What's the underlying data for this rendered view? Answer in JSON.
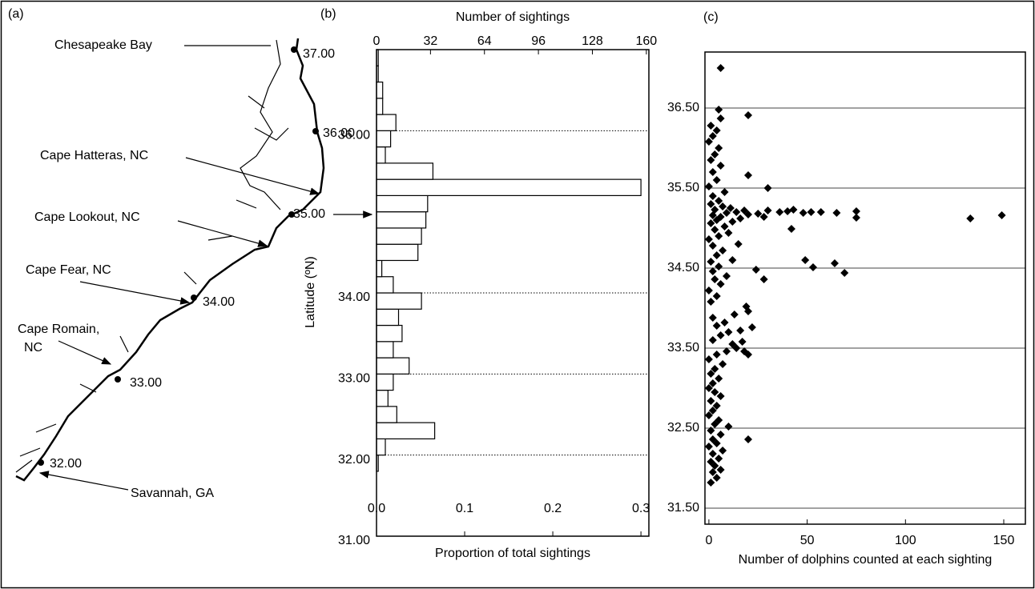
{
  "map": {
    "panel_label": "(a)",
    "places": [
      "Chesapeake Bay",
      "Cape Hatteras, NC",
      "Cape Lookout, NC",
      "Cape Fear, NC",
      [
        "Cape Romain,",
        "NC"
      ],
      "Savannah, GA"
    ],
    "latitudes": [
      "37.00",
      "36.00",
      "35.00",
      "34.00",
      "33.00",
      "32.00"
    ]
  },
  "chart_data": [
    {
      "type": "histogram",
      "panel_label": "(b)",
      "orientation": "horizontal",
      "bins": [
        31.8,
        32,
        32.2,
        32.4,
        32.6,
        32.8,
        33,
        33.2,
        33.4,
        33.6,
        33.8,
        34,
        34.2,
        34.4,
        34.6,
        34.8,
        35,
        35.2,
        35.4,
        35.6,
        35.8,
        36,
        36.2,
        36.4,
        36.6,
        36.8,
        37
      ],
      "values": [
        0.002,
        0.01,
        0.066,
        0.023,
        0.013,
        0.019,
        0.037,
        0.019,
        0.029,
        0.025,
        0.051,
        0.019,
        0.006,
        0.047,
        0.051,
        0.056,
        0.058,
        0.3,
        0.064,
        0.01,
        0.016,
        0.022,
        0.007,
        0.007,
        0.002,
        0.002
      ],
      "color": "#ffffff",
      "xlim": [
        0,
        0.309
      ],
      "xticks": [
        {
          "value": 0,
          "label": "0.0"
        },
        {
          "value": 0.1,
          "label": "0.1"
        },
        {
          "value": 0.2,
          "label": "0.2"
        },
        {
          "value": 0.3,
          "label": "0.3"
        }
      ],
      "x_label": "Proportion of total sightings",
      "x2lim": [
        0,
        161.5
      ],
      "x2ticks": [
        0,
        32,
        64,
        96,
        128,
        160
      ],
      "x2_label": "Number of sightings",
      "ylim": [
        31,
        37
      ],
      "yticks": [
        {
          "value": 31,
          "label": "31.00"
        },
        {
          "value": 32,
          "label": "32.00"
        },
        {
          "value": 33,
          "label": "33.00"
        },
        {
          "value": 34,
          "label": "34.00"
        },
        {
          "value": 36,
          "label": "36.00"
        }
      ],
      "y_label": "Latitude (ºN)",
      "grid": true
    },
    {
      "type": "scatter",
      "panel_label": "(c)",
      "x": [
        1,
        4,
        2,
        6,
        3,
        1,
        5,
        2,
        7,
        0,
        4,
        2,
        6,
        1,
        3,
        5,
        0,
        2,
        4,
        1,
        6,
        3,
        0,
        2,
        5,
        1,
        3,
        7,
        0,
        4,
        9,
        14,
        18,
        12,
        2,
        6,
        10,
        16,
        4,
        8,
        2,
        13,
        19,
        1,
        4,
        0,
        6,
        3,
        9,
        2,
        5,
        1,
        12,
        4,
        7,
        2,
        15,
        0,
        5,
        10,
        3,
        8,
        1,
        12,
        4,
        16,
        6,
        2,
        20,
        9,
        14,
        18,
        3,
        11,
        7,
        1,
        5,
        2,
        8,
        0,
        4,
        2,
        6,
        1,
        3,
        5,
        0,
        2,
        4,
        1,
        6,
        5,
        25,
        28,
        30,
        36,
        40,
        43,
        48,
        52,
        57,
        65,
        75,
        75,
        133,
        149,
        42,
        30,
        20,
        20,
        6,
        49,
        53,
        64,
        69,
        28,
        24,
        20,
        10,
        20,
        17,
        22,
        20
      ],
      "y": [
        31.82,
        31.88,
        31.95,
        31.98,
        32.03,
        32.08,
        32.12,
        32.18,
        32.22,
        32.27,
        32.31,
        32.36,
        32.42,
        32.47,
        32.55,
        32.6,
        32.66,
        32.72,
        32.78,
        32.84,
        32.9,
        32.95,
        33,
        33.06,
        33.12,
        33.18,
        33.24,
        33.3,
        33.36,
        33.42,
        33.46,
        33.5,
        33.46,
        33.55,
        33.6,
        33.66,
        33.7,
        33.72,
        33.78,
        33.82,
        33.88,
        33.92,
        34.02,
        34.08,
        34.15,
        34.22,
        34.3,
        34.36,
        34.4,
        34.46,
        34.52,
        34.58,
        34.6,
        34.66,
        34.72,
        34.78,
        34.8,
        34.86,
        34.9,
        34.94,
        34.98,
        35.02,
        35.06,
        35.08,
        35.1,
        35.12,
        35.14,
        35.16,
        35.17,
        35.19,
        35.2,
        35.22,
        35.23,
        35.25,
        35.27,
        35.3,
        35.34,
        35.4,
        35.45,
        35.52,
        35.6,
        35.7,
        35.78,
        35.85,
        35.92,
        36,
        36.08,
        36.15,
        36.22,
        36.28,
        36.37,
        36.48,
        35.18,
        35.14,
        35.22,
        35.2,
        35.21,
        35.23,
        35.19,
        35.2,
        35.2,
        35.19,
        35.21,
        35.13,
        35.12,
        35.16,
        34.99,
        35.5,
        35.66,
        36.41,
        37,
        34.6,
        34.51,
        34.56,
        34.44,
        34.36,
        34.48,
        32.36,
        32.52,
        33.42,
        33.58,
        33.76,
        33.96
      ],
      "color": "#000000",
      "marker": "diamond",
      "xlim": [
        -2,
        161
      ],
      "xticks": [
        0,
        50,
        100,
        150
      ],
      "x_label": "Number of dolphins counted at each sighting",
      "ylim": [
        31.3,
        37.2
      ],
      "yticks": [
        {
          "value": 31.5,
          "label": "31.50"
        },
        {
          "value": 32.5,
          "label": "32.50"
        },
        {
          "value": 33.5,
          "label": "33.50"
        },
        {
          "value": 34.5,
          "label": "34.50"
        },
        {
          "value": 35.5,
          "label": "35.50"
        },
        {
          "value": 36.5,
          "label": "36.50"
        }
      ],
      "grid": true
    }
  ]
}
